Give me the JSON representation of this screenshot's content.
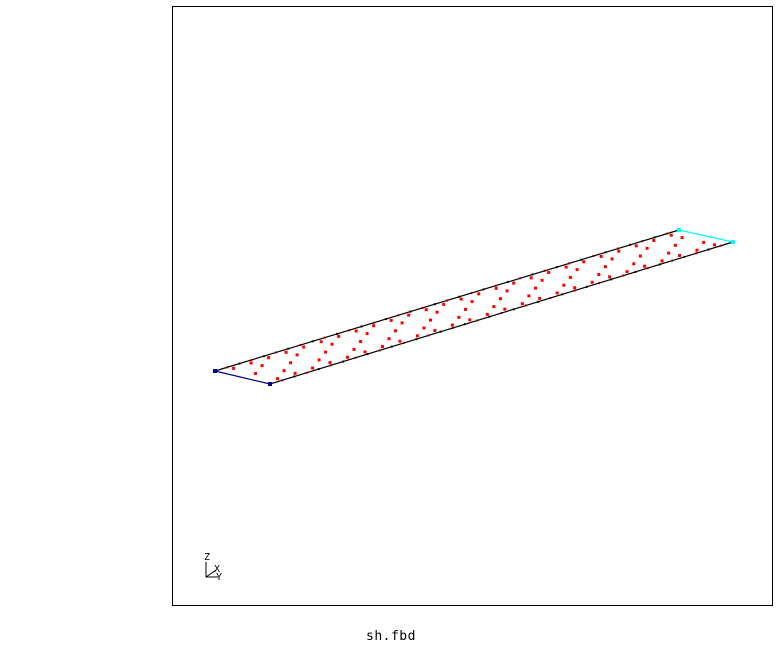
{
  "window": {
    "filename": "sh.fbd"
  },
  "triad": {
    "z_label": "Z",
    "x_label": "X",
    "y_label": "Y"
  },
  "colors": {
    "outline": "#000000",
    "mesh_points": "#ff0000",
    "edge_blue": "#00008b",
    "edge_cyan": "#00ffff",
    "background": "#ffffff"
  },
  "mesh": {
    "rows": 26,
    "cols": 5
  }
}
